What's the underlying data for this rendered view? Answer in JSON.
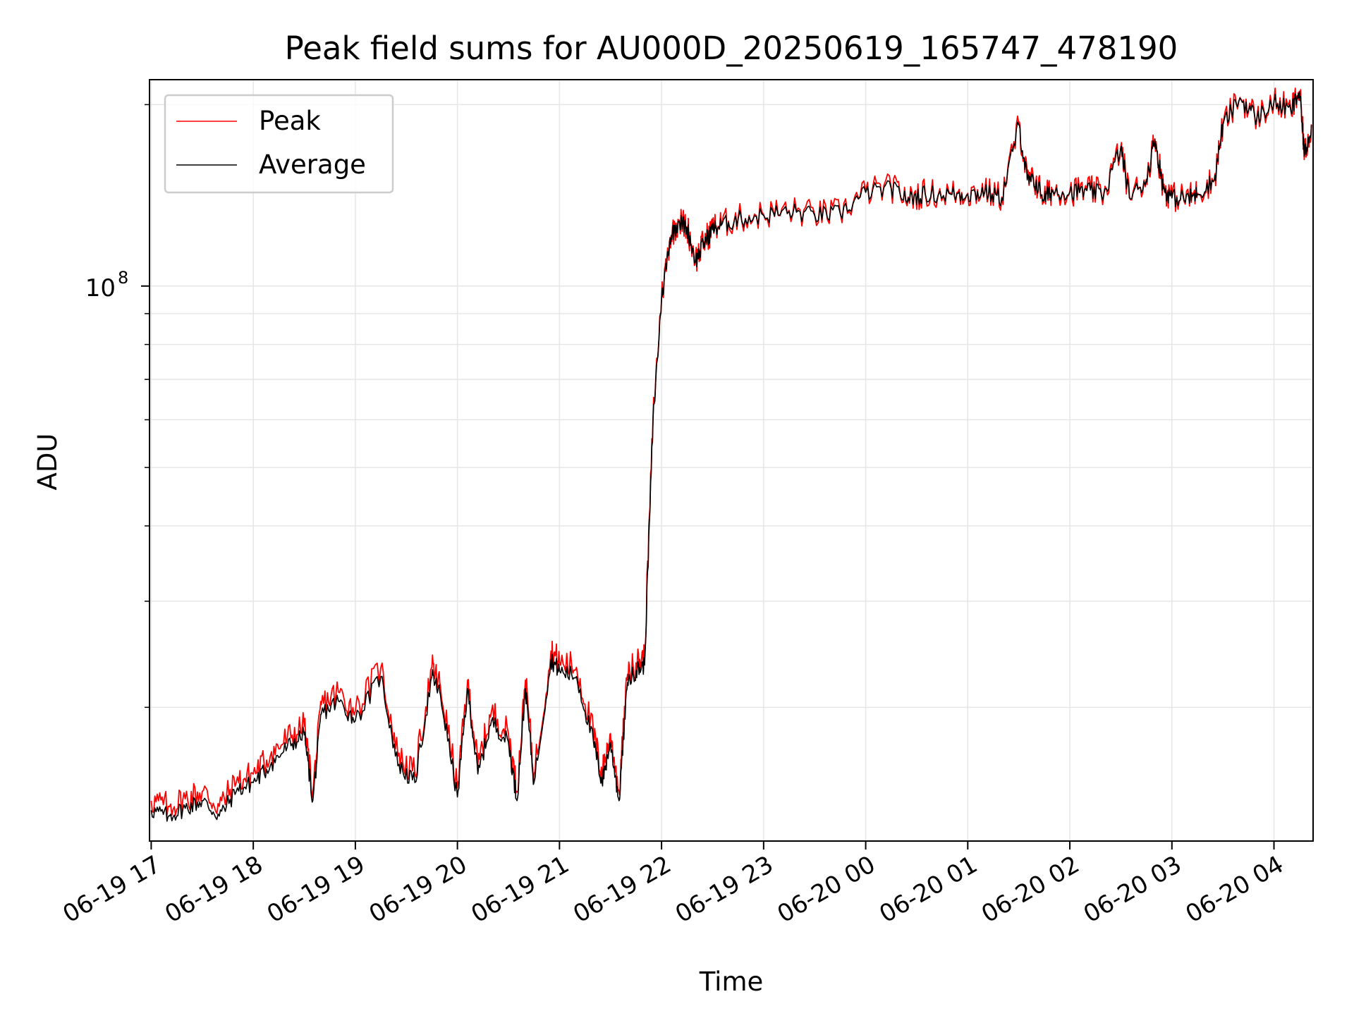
{
  "chart_data": {
    "type": "line",
    "title": "Peak field sums for AU000D_20250619_165747_478190",
    "xlabel": "Time",
    "ylabel": "ADU",
    "yscale": "log",
    "ylim": [
      12000000,
      220000000
    ],
    "xlim": [
      "2025-06-19 16:59",
      "2025-06-20 04:23"
    ],
    "grid": true,
    "legend": {
      "position": "top-left",
      "entries": [
        "Peak",
        "Average"
      ]
    },
    "x_ticks": [
      "06-19 17",
      "06-19 18",
      "06-19 19",
      "06-19 20",
      "06-19 21",
      "06-19 22",
      "06-19 23",
      "06-20 00",
      "06-20 01",
      "06-20 02",
      "06-20 03",
      "06-20 04"
    ],
    "y_major_ticks": [
      {
        "value": 100000000,
        "label": "10",
        "exponent": "8"
      }
    ],
    "y_minor_ticks": [
      20000000,
      30000000,
      40000000,
      50000000,
      60000000,
      70000000,
      80000000,
      90000000,
      200000000
    ],
    "series": [
      {
        "name": "Peak",
        "color": "#ff0000",
        "noise_offset": 1.035
      },
      {
        "name": "Average",
        "color": "#000000"
      }
    ],
    "x": [
      "2025-06-19 17:00",
      "2025-06-19 17:10",
      "2025-06-19 17:20",
      "2025-06-19 17:30",
      "2025-06-19 17:40",
      "2025-06-19 17:50",
      "2025-06-19 18:00",
      "2025-06-19 18:10",
      "2025-06-19 18:20",
      "2025-06-19 18:30",
      "2025-06-19 18:35",
      "2025-06-19 18:40",
      "2025-06-19 18:50",
      "2025-06-19 19:00",
      "2025-06-19 19:15",
      "2025-06-19 19:25",
      "2025-06-19 19:35",
      "2025-06-19 19:45",
      "2025-06-19 19:50",
      "2025-06-19 20:00",
      "2025-06-19 20:06",
      "2025-06-19 20:12",
      "2025-06-19 20:20",
      "2025-06-19 20:30",
      "2025-06-19 20:35",
      "2025-06-19 20:40",
      "2025-06-19 20:45",
      "2025-06-19 20:55",
      "2025-06-19 21:00",
      "2025-06-19 21:10",
      "2025-06-19 21:20",
      "2025-06-19 21:25",
      "2025-06-19 21:30",
      "2025-06-19 21:35",
      "2025-06-19 21:40",
      "2025-06-19 21:45",
      "2025-06-19 21:50",
      "2025-06-19 21:55",
      "2025-06-19 22:00",
      "2025-06-19 22:05",
      "2025-06-19 22:10",
      "2025-06-19 22:15",
      "2025-06-19 22:20",
      "2025-06-19 22:25",
      "2025-06-19 22:30",
      "2025-06-19 22:35",
      "2025-06-19 22:45",
      "2025-06-19 23:00",
      "2025-06-19 23:15",
      "2025-06-19 23:30",
      "2025-06-19 23:45",
      "2025-06-20 00:00",
      "2025-06-20 00:15",
      "2025-06-20 00:25",
      "2025-06-20 00:35",
      "2025-06-20 00:50",
      "2025-06-20 01:00",
      "2025-06-20 01:10",
      "2025-06-20 01:20",
      "2025-06-20 01:30",
      "2025-06-20 01:35",
      "2025-06-20 01:40",
      "2025-06-20 01:45",
      "2025-06-20 01:50",
      "2025-06-20 02:00",
      "2025-06-20 02:10",
      "2025-06-20 02:20",
      "2025-06-20 02:30",
      "2025-06-20 02:35",
      "2025-06-20 02:45",
      "2025-06-20 02:50",
      "2025-06-20 02:55",
      "2025-06-20 03:00",
      "2025-06-20 03:10",
      "2025-06-20 03:15",
      "2025-06-20 03:25",
      "2025-06-20 03:30",
      "2025-06-20 03:40",
      "2025-06-20 03:50",
      "2025-06-20 04:00",
      "2025-06-20 04:10",
      "2025-06-20 04:15",
      "2025-06-20 04:18",
      "2025-06-20 04:22"
    ],
    "average": [
      13500000,
      13200000,
      13600000,
      14000000,
      13200000,
      14500000,
      15000000,
      16000000,
      17200000,
      18000000,
      14000000,
      19500000,
      20500000,
      19000000,
      22500000,
      16000000,
      15000000,
      22500000,
      21000000,
      14200000,
      21500000,
      15500000,
      19000000,
      17500000,
      14000000,
      21500000,
      15000000,
      24000000,
      23000000,
      22500000,
      17500000,
      15000000,
      17500000,
      14000000,
      22000000,
      23000000,
      23500000,
      60000000,
      95000000,
      120000000,
      128000000,
      125000000,
      110000000,
      118000000,
      124000000,
      126000000,
      129000000,
      131000000,
      133000000,
      131000000,
      132000000,
      143000000,
      145000000,
      140000000,
      142000000,
      142000000,
      142000000,
      143000000,
      140000000,
      185000000,
      150000000,
      148000000,
      140000000,
      144000000,
      143000000,
      144000000,
      142000000,
      170000000,
      140000000,
      150000000,
      175000000,
      145000000,
      140000000,
      140000000,
      142000000,
      150000000,
      185000000,
      205000000,
      190000000,
      202000000,
      195000000,
      210000000,
      165000000,
      185000000
    ],
    "peak": [
      14000000,
      13700000,
      14100000,
      14500000,
      13700000,
      15000000,
      15500000,
      16600000,
      17800000,
      18600000,
      14500000,
      20200000,
      21200000,
      19700000,
      23300000,
      16600000,
      15500000,
      23300000,
      21700000,
      14700000,
      22200000,
      16000000,
      19700000,
      18100000,
      14500000,
      22200000,
      15500000,
      24800000,
      23800000,
      23300000,
      18100000,
      15500000,
      18100000,
      14500000,
      22700000,
      23700000,
      24200000,
      60600000,
      95500000,
      120500000,
      128500000,
      125500000,
      110500000,
      118500000,
      124500000,
      126500000,
      129500000,
      131500000,
      133500000,
      131500000,
      132500000,
      143500000,
      145500000,
      140500000,
      142500000,
      142500000,
      142500000,
      143500000,
      140500000,
      185500000,
      150500000,
      148500000,
      140500000,
      144500000,
      143500000,
      144500000,
      142500000,
      170500000,
      140500000,
      150500000,
      175500000,
      145500000,
      140500000,
      140500000,
      142500000,
      150500000,
      185500000,
      205500000,
      190500000,
      202500000,
      195500000,
      210500000,
      165500000,
      185500000
    ]
  }
}
